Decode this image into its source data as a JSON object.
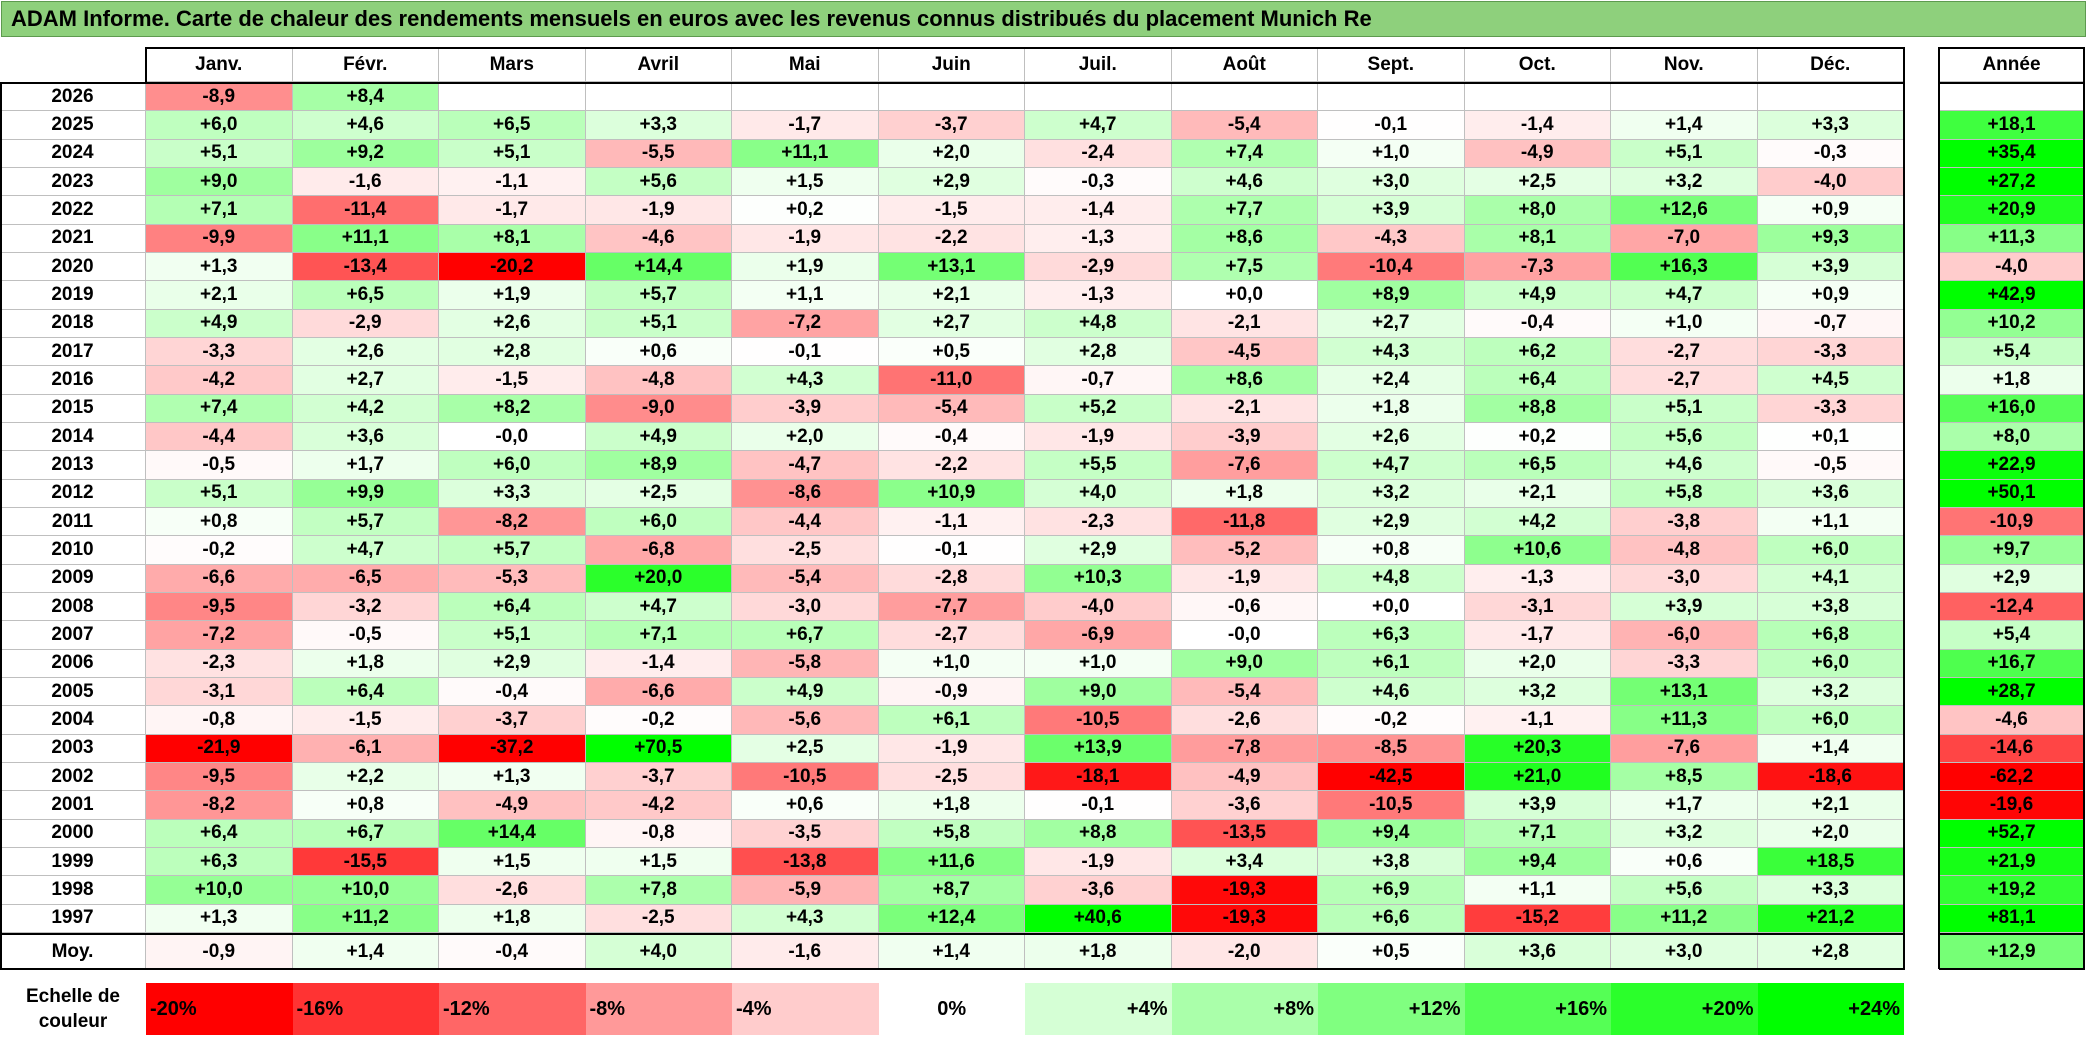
{
  "title": "ADAM Informe. Carte de chaleur des rendements mensuels en euros avec les revenus connus distribués du placement Munich Re",
  "chart_data": {
    "type": "heatmap",
    "title": "ADAM Informe. Carte de chaleur des rendements mensuels en euros avec les revenus connus distribués du placement Munich Re",
    "columns": [
      "Janv.",
      "Févr.",
      "Mars",
      "Avril",
      "Mai",
      "Juin",
      "Juil.",
      "Août",
      "Sept.",
      "Oct.",
      "Nov.",
      "Déc."
    ],
    "year_column_label": "Année",
    "rows": [
      {
        "year": "2026",
        "values": [
          "-8,9",
          "+8,4",
          "",
          "",
          "",
          "",
          "",
          "",
          "",
          "",
          "",
          ""
        ],
        "annual": ""
      },
      {
        "year": "2025",
        "values": [
          "+6,0",
          "+4,6",
          "+6,5",
          "+3,3",
          "-1,7",
          "-3,7",
          "+4,7",
          "-5,4",
          "-0,1",
          "-1,4",
          "+1,4",
          "+3,3"
        ],
        "annual": "+18,1"
      },
      {
        "year": "2024",
        "values": [
          "+5,1",
          "+9,2",
          "+5,1",
          "-5,5",
          "+11,1",
          "+2,0",
          "-2,4",
          "+7,4",
          "+1,0",
          "-4,9",
          "+5,1",
          "-0,3"
        ],
        "annual": "+35,4"
      },
      {
        "year": "2023",
        "values": [
          "+9,0",
          "-1,6",
          "-1,1",
          "+5,6",
          "+1,5",
          "+2,9",
          "-0,3",
          "+4,6",
          "+3,0",
          "+2,5",
          "+3,2",
          "-4,0"
        ],
        "annual": "+27,2"
      },
      {
        "year": "2022",
        "values": [
          "+7,1",
          "-11,4",
          "-1,7",
          "-1,9",
          "+0,2",
          "-1,5",
          "-1,4",
          "+7,7",
          "+3,9",
          "+8,0",
          "+12,6",
          "+0,9"
        ],
        "annual": "+20,9"
      },
      {
        "year": "2021",
        "values": [
          "-9,9",
          "+11,1",
          "+8,1",
          "-4,6",
          "-1,9",
          "-2,2",
          "-1,3",
          "+8,6",
          "-4,3",
          "+8,1",
          "-7,0",
          "+9,3"
        ],
        "annual": "+11,3"
      },
      {
        "year": "2020",
        "values": [
          "+1,3",
          "-13,4",
          "-20,2",
          "+14,4",
          "+1,9",
          "+13,1",
          "-2,9",
          "+7,5",
          "-10,4",
          "-7,3",
          "+16,3",
          "+3,9"
        ],
        "annual": "-4,0"
      },
      {
        "year": "2019",
        "values": [
          "+2,1",
          "+6,5",
          "+1,9",
          "+5,7",
          "+1,1",
          "+2,1",
          "-1,3",
          "+0,0",
          "+8,9",
          "+4,9",
          "+4,7",
          "+0,9"
        ],
        "annual": "+42,9"
      },
      {
        "year": "2018",
        "values": [
          "+4,9",
          "-2,9",
          "+2,6",
          "+5,1",
          "-7,2",
          "+2,7",
          "+4,8",
          "-2,1",
          "+2,7",
          "-0,4",
          "+1,0",
          "-0,7"
        ],
        "annual": "+10,2"
      },
      {
        "year": "2017",
        "values": [
          "-3,3",
          "+2,6",
          "+2,8",
          "+0,6",
          "-0,1",
          "+0,5",
          "+2,8",
          "-4,5",
          "+4,3",
          "+6,2",
          "-2,7",
          "-3,3"
        ],
        "annual": "+5,4"
      },
      {
        "year": "2016",
        "values": [
          "-4,2",
          "+2,7",
          "-1,5",
          "-4,8",
          "+4,3",
          "-11,0",
          "-0,7",
          "+8,6",
          "+2,4",
          "+6,4",
          "-2,7",
          "+4,5"
        ],
        "annual": "+1,8"
      },
      {
        "year": "2015",
        "values": [
          "+7,4",
          "+4,2",
          "+8,2",
          "-9,0",
          "-3,9",
          "-5,4",
          "+5,2",
          "-2,1",
          "+1,8",
          "+8,8",
          "+5,1",
          "-3,3"
        ],
        "annual": "+16,0"
      },
      {
        "year": "2014",
        "values": [
          "-4,4",
          "+3,6",
          "-0,0",
          "+4,9",
          "+2,0",
          "-0,4",
          "-1,9",
          "-3,9",
          "+2,6",
          "+0,2",
          "+5,6",
          "+0,1"
        ],
        "annual": "+8,0"
      },
      {
        "year": "2013",
        "values": [
          "-0,5",
          "+1,7",
          "+6,0",
          "+8,9",
          "-4,7",
          "-2,2",
          "+5,5",
          "-7,6",
          "+4,7",
          "+6,5",
          "+4,6",
          "-0,5"
        ],
        "annual": "+22,9"
      },
      {
        "year": "2012",
        "values": [
          "+5,1",
          "+9,9",
          "+3,3",
          "+2,5",
          "-8,6",
          "+10,9",
          "+4,0",
          "+1,8",
          "+3,2",
          "+2,1",
          "+5,8",
          "+3,6"
        ],
        "annual": "+50,1"
      },
      {
        "year": "2011",
        "values": [
          "+0,8",
          "+5,7",
          "-8,2",
          "+6,0",
          "-4,4",
          "-1,1",
          "-2,3",
          "-11,8",
          "+2,9",
          "+4,2",
          "-3,8",
          "+1,1"
        ],
        "annual": "-10,9"
      },
      {
        "year": "2010",
        "values": [
          "-0,2",
          "+4,7",
          "+5,7",
          "-6,8",
          "-2,5",
          "-0,1",
          "+2,9",
          "-5,2",
          "+0,8",
          "+10,6",
          "-4,8",
          "+6,0"
        ],
        "annual": "+9,7"
      },
      {
        "year": "2009",
        "values": [
          "-6,6",
          "-6,5",
          "-5,3",
          "+20,0",
          "-5,4",
          "-2,8",
          "+10,3",
          "-1,9",
          "+4,8",
          "-1,3",
          "-3,0",
          "+4,1"
        ],
        "annual": "+2,9"
      },
      {
        "year": "2008",
        "values": [
          "-9,5",
          "-3,2",
          "+6,4",
          "+4,7",
          "-3,0",
          "-7,7",
          "-4,0",
          "-0,6",
          "+0,0",
          "-3,1",
          "+3,9",
          "+3,8"
        ],
        "annual": "-12,4"
      },
      {
        "year": "2007",
        "values": [
          "-7,2",
          "-0,5",
          "+5,1",
          "+7,1",
          "+6,7",
          "-2,7",
          "-6,9",
          "-0,0",
          "+6,3",
          "-1,7",
          "-6,0",
          "+6,8"
        ],
        "annual": "+5,4"
      },
      {
        "year": "2006",
        "values": [
          "-2,3",
          "+1,8",
          "+2,9",
          "-1,4",
          "-5,8",
          "+1,0",
          "+1,0",
          "+9,0",
          "+6,1",
          "+2,0",
          "-3,3",
          "+6,0"
        ],
        "annual": "+16,7"
      },
      {
        "year": "2005",
        "values": [
          "-3,1",
          "+6,4",
          "-0,4",
          "-6,6",
          "+4,9",
          "-0,9",
          "+9,0",
          "-5,4",
          "+4,6",
          "+3,2",
          "+13,1",
          "+3,2"
        ],
        "annual": "+28,7"
      },
      {
        "year": "2004",
        "values": [
          "-0,8",
          "-1,5",
          "-3,7",
          "-0,2",
          "-5,6",
          "+6,1",
          "-10,5",
          "-2,6",
          "-0,2",
          "-1,1",
          "+11,3",
          "+6,0"
        ],
        "annual": "-4,6"
      },
      {
        "year": "2003",
        "values": [
          "-21,9",
          "-6,1",
          "-37,2",
          "+70,5",
          "+2,5",
          "-1,9",
          "+13,9",
          "-7,8",
          "-8,5",
          "+20,3",
          "-7,6",
          "+1,4"
        ],
        "annual": "-14,6"
      },
      {
        "year": "2002",
        "values": [
          "-9,5",
          "+2,2",
          "+1,3",
          "-3,7",
          "-10,5",
          "-2,5",
          "-18,1",
          "-4,9",
          "-42,5",
          "+21,0",
          "+8,5",
          "-18,6"
        ],
        "annual": "-62,2"
      },
      {
        "year": "2001",
        "values": [
          "-8,2",
          "+0,8",
          "-4,9",
          "-4,2",
          "+0,6",
          "+1,8",
          "-0,1",
          "-3,6",
          "-10,5",
          "+3,9",
          "+1,7",
          "+2,1"
        ],
        "annual": "-19,6"
      },
      {
        "year": "2000",
        "values": [
          "+6,4",
          "+6,7",
          "+14,4",
          "-0,8",
          "-3,5",
          "+5,8",
          "+8,8",
          "-13,5",
          "+9,4",
          "+7,1",
          "+3,2",
          "+2,0"
        ],
        "annual": "+52,7"
      },
      {
        "year": "1999",
        "values": [
          "+6,3",
          "-15,5",
          "+1,5",
          "+1,5",
          "-13,8",
          "+11,6",
          "-1,9",
          "+3,4",
          "+3,8",
          "+9,4",
          "+0,6",
          "+18,5"
        ],
        "annual": "+21,9"
      },
      {
        "year": "1998",
        "values": [
          "+10,0",
          "+10,0",
          "-2,6",
          "+7,8",
          "-5,9",
          "+8,7",
          "-3,6",
          "-19,3",
          "+6,9",
          "+1,1",
          "+5,6",
          "+3,3"
        ],
        "annual": "+19,2"
      },
      {
        "year": "1997",
        "values": [
          "+1,3",
          "+11,2",
          "+1,8",
          "-2,5",
          "+4,3",
          "+12,4",
          "+40,6",
          "-19,3",
          "+6,6",
          "-15,2",
          "+11,2",
          "+21,2"
        ],
        "annual": "+81,1"
      }
    ],
    "average": {
      "label": "Moy.",
      "values": [
        "-0,9",
        "+1,4",
        "-0,4",
        "+4,0",
        "-1,6",
        "+1,4",
        "+1,8",
        "-2,0",
        "+0,5",
        "+3,6",
        "+3,0",
        "+2,8"
      ],
      "annual": "+12,9"
    },
    "legend": {
      "label_line1": "Echelle de",
      "label_line2": "couleur",
      "stops": [
        "-20%",
        "-16%",
        "-12%",
        "-8%",
        "-4%",
        "0%",
        "+4%",
        "+8%",
        "+12%",
        "+16%",
        "+20%",
        "+24%"
      ],
      "stop_values": [
        -20,
        -16,
        -12,
        -8,
        -4,
        0,
        4,
        8,
        12,
        16,
        20,
        24
      ]
    },
    "color_scale": {
      "negative_max": "#ff0000",
      "neutral": "#ffffff",
      "positive_max": "#00ff00",
      "negative_limit": -20,
      "positive_limit": 24
    }
  }
}
